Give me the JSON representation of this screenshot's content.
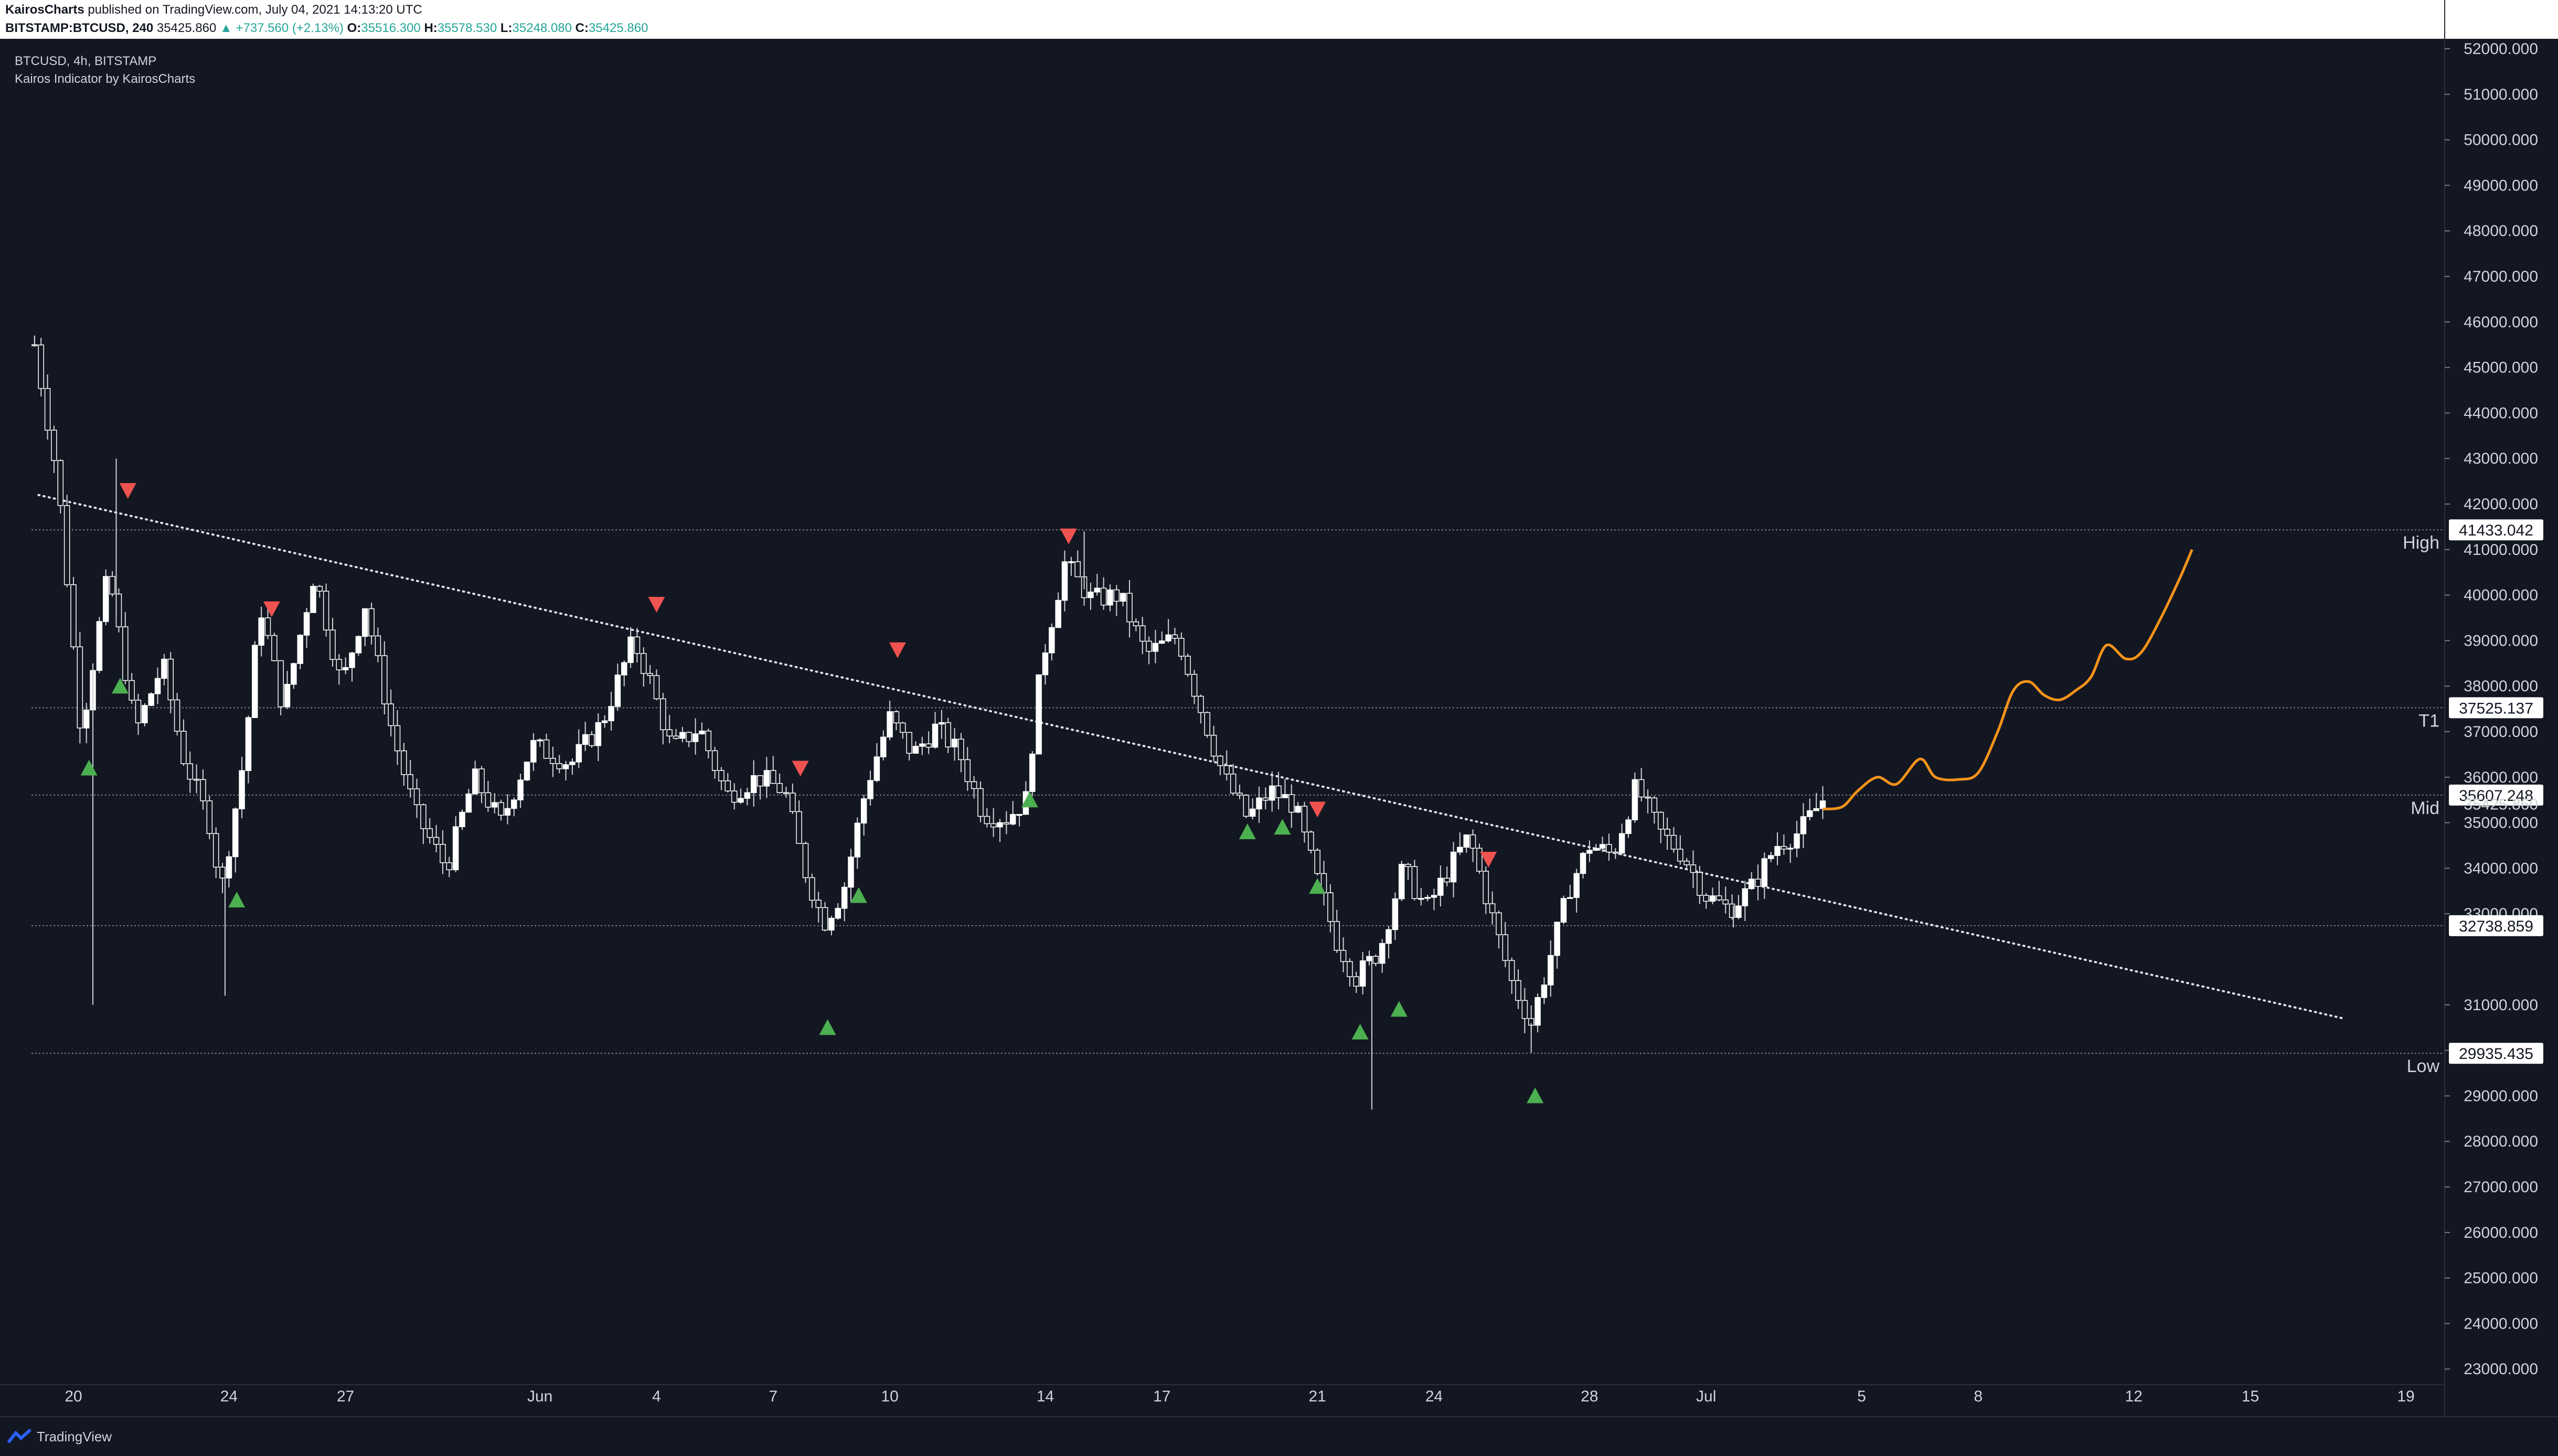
{
  "header": {
    "publisher": "KairosCharts",
    "published_text": "published on TradingView.com, July 04, 2021 14:13:20 UTC",
    "symbol": "BITSTAMP:BTCUSD, 240",
    "last": "35425.860",
    "change": "▲ +737.560 (+2.13%)",
    "o_label": "O:",
    "o": "35516.300",
    "h_label": "H:",
    "h": "35578.530",
    "l_label": "L:",
    "l": "35248.080",
    "c_label": "C:",
    "c": "35425.860"
  },
  "legend": {
    "symbol_line": "BTCUSD, 4h, BITSTAMP",
    "indicator_line": "Kairos Indicator by KairosCharts"
  },
  "footer": {
    "brand": "TradingView"
  },
  "colors": {
    "background": "#131722",
    "candle": "#ffffff",
    "buy_marker": "#4caf50",
    "sell_marker": "#ef5350",
    "projection": "#f7931a",
    "level_line": "#9598a1"
  },
  "chart_data": {
    "type": "candlestick",
    "title": "",
    "ylim": [
      22500,
      52300
    ],
    "y_ticks": [
      "52000.000",
      "51000.000",
      "50000.000",
      "49000.000",
      "48000.000",
      "47000.000",
      "46000.000",
      "45000.000",
      "44000.000",
      "43000.000",
      "42000.000",
      "41000.000",
      "40000.000",
      "39000.000",
      "38000.000",
      "37000.000",
      "36000.000",
      "35000.000",
      "34000.000",
      "33000.000",
      "31000.000",
      "30000.000",
      "29000.000",
      "28000.000",
      "27000.000",
      "26000.000",
      "25000.000",
      "24000.000",
      "23000.000"
    ],
    "x_ticks": [
      {
        "label": "20",
        "day": 20
      },
      {
        "label": "24",
        "day": 24
      },
      {
        "label": "27",
        "day": 27
      },
      {
        "label": "Jun",
        "day": 32
      },
      {
        "label": "4",
        "day": 35
      },
      {
        "label": "7",
        "day": 38
      },
      {
        "label": "10",
        "day": 41
      },
      {
        "label": "14",
        "day": 45
      },
      {
        "label": "17",
        "day": 48
      },
      {
        "label": "21",
        "day": 52
      },
      {
        "label": "24",
        "day": 55
      },
      {
        "label": "28",
        "day": 59
      },
      {
        "label": "Jul",
        "day": 62
      },
      {
        "label": "5",
        "day": 66
      },
      {
        "label": "8",
        "day": 69
      },
      {
        "label": "12",
        "day": 73
      },
      {
        "label": "15",
        "day": 76
      },
      {
        "label": "19",
        "day": 80
      }
    ],
    "levels": [
      {
        "name": "High",
        "value": 41433.042,
        "label": "41433.042"
      },
      {
        "name": "T1",
        "value": 37525.137,
        "label": "37525.137"
      },
      {
        "name": "Mid",
        "value": 35607.248,
        "label": "35607.248"
      },
      {
        "name": "",
        "value": 32738.859,
        "label": "32738.859"
      },
      {
        "name": "Low",
        "value": 29935.435,
        "label": "29935.435"
      }
    ],
    "last_price": {
      "value": 35425.86,
      "label": "35425.860"
    },
    "trendline": [
      {
        "day": 19.1,
        "price": 42200
      },
      {
        "day": 78.4,
        "price": 30700
      }
    ],
    "anchors": [
      {
        "day": 19.0,
        "price": 45500
      },
      {
        "day": 19.6,
        "price": 42500
      },
      {
        "day": 20.2,
        "price": 37000
      },
      {
        "day": 20.9,
        "price": 40500
      },
      {
        "day": 21.6,
        "price": 37000
      },
      {
        "day": 22.3,
        "price": 38500
      },
      {
        "day": 22.8,
        "price": 36500
      },
      {
        "day": 23.5,
        "price": 35000
      },
      {
        "day": 23.8,
        "price": 33500
      },
      {
        "day": 24.4,
        "price": 36500
      },
      {
        "day": 24.8,
        "price": 39800
      },
      {
        "day": 25.4,
        "price": 37500
      },
      {
        "day": 26.2,
        "price": 40500
      },
      {
        "day": 26.9,
        "price": 38000
      },
      {
        "day": 27.5,
        "price": 39800
      },
      {
        "day": 28.2,
        "price": 37000
      },
      {
        "day": 28.8,
        "price": 35200
      },
      {
        "day": 29.6,
        "price": 34000
      },
      {
        "day": 30.3,
        "price": 36000
      },
      {
        "day": 31.0,
        "price": 35000
      },
      {
        "day": 31.8,
        "price": 36700
      },
      {
        "day": 32.8,
        "price": 36300
      },
      {
        "day": 33.6,
        "price": 37200
      },
      {
        "day": 34.4,
        "price": 39000
      },
      {
        "day": 34.8,
        "price": 38200
      },
      {
        "day": 35.4,
        "price": 36600
      },
      {
        "day": 36.1,
        "price": 37100
      },
      {
        "day": 36.8,
        "price": 35600
      },
      {
        "day": 37.6,
        "price": 36000
      },
      {
        "day": 38.3,
        "price": 35700
      },
      {
        "day": 38.8,
        "price": 34000
      },
      {
        "day": 39.3,
        "price": 32800
      },
      {
        "day": 39.8,
        "price": 33500
      },
      {
        "day": 40.4,
        "price": 35800
      },
      {
        "day": 41.0,
        "price": 37300
      },
      {
        "day": 41.6,
        "price": 36500
      },
      {
        "day": 42.2,
        "price": 37100
      },
      {
        "day": 42.8,
        "price": 36500
      },
      {
        "day": 43.4,
        "price": 35200
      },
      {
        "day": 44.0,
        "price": 35100
      },
      {
        "day": 44.5,
        "price": 35500
      },
      {
        "day": 44.9,
        "price": 38500
      },
      {
        "day": 45.5,
        "price": 40700
      },
      {
        "day": 46.2,
        "price": 39900
      },
      {
        "day": 46.9,
        "price": 40000
      },
      {
        "day": 47.6,
        "price": 38700
      },
      {
        "day": 48.4,
        "price": 39100
      },
      {
        "day": 49.0,
        "price": 37500
      },
      {
        "day": 49.6,
        "price": 36000
      },
      {
        "day": 50.2,
        "price": 35100
      },
      {
        "day": 50.8,
        "price": 35700
      },
      {
        "day": 51.4,
        "price": 35400
      },
      {
        "day": 51.9,
        "price": 34000
      },
      {
        "day": 52.5,
        "price": 32400
      },
      {
        "day": 53.0,
        "price": 31600
      },
      {
        "day": 53.6,
        "price": 32200
      },
      {
        "day": 54.2,
        "price": 34000
      },
      {
        "day": 54.8,
        "price": 33100
      },
      {
        "day": 55.4,
        "price": 34000
      },
      {
        "day": 55.9,
        "price": 34700
      },
      {
        "day": 56.4,
        "price": 33200
      },
      {
        "day": 57.0,
        "price": 31500
      },
      {
        "day": 57.5,
        "price": 30600
      },
      {
        "day": 58.0,
        "price": 32100
      },
      {
        "day": 58.5,
        "price": 33600
      },
      {
        "day": 59.0,
        "price": 34500
      },
      {
        "day": 59.6,
        "price": 34300
      },
      {
        "day": 60.2,
        "price": 35800
      },
      {
        "day": 60.8,
        "price": 34800
      },
      {
        "day": 61.4,
        "price": 34300
      },
      {
        "day": 62.0,
        "price": 33400
      },
      {
        "day": 62.6,
        "price": 33100
      },
      {
        "day": 63.2,
        "price": 33600
      },
      {
        "day": 63.8,
        "price": 34500
      },
      {
        "day": 64.4,
        "price": 34800
      },
      {
        "day": 65.0,
        "price": 35500
      }
    ],
    "wicks": [
      {
        "day": 20.5,
        "low": 31000
      },
      {
        "day": 23.9,
        "low": 31200
      },
      {
        "day": 53.4,
        "low": 28700
      },
      {
        "day": 57.5,
        "low": 29950
      },
      {
        "day": 19.0,
        "high": 45700
      },
      {
        "day": 21.1,
        "high": 43000
      },
      {
        "day": 46.0,
        "high": 41400
      },
      {
        "day": 62.7,
        "low": 32700
      }
    ],
    "buy_signals": [
      {
        "day": 20.4,
        "price": 36200
      },
      {
        "day": 21.2,
        "price": 38000
      },
      {
        "day": 24.2,
        "price": 33300
      },
      {
        "day": 39.4,
        "price": 30500
      },
      {
        "day": 40.2,
        "price": 33400
      },
      {
        "day": 44.6,
        "price": 35500
      },
      {
        "day": 50.2,
        "price": 34800
      },
      {
        "day": 51.1,
        "price": 34900
      },
      {
        "day": 52.0,
        "price": 33600
      },
      {
        "day": 53.1,
        "price": 30400
      },
      {
        "day": 54.1,
        "price": 30900
      },
      {
        "day": 57.6,
        "price": 29000
      }
    ],
    "sell_signals": [
      {
        "day": 21.4,
        "price": 42300
      },
      {
        "day": 25.1,
        "price": 39700
      },
      {
        "day": 35.0,
        "price": 39800
      },
      {
        "day": 38.7,
        "price": 36200
      },
      {
        "day": 41.2,
        "price": 38800
      },
      {
        "day": 45.6,
        "price": 41300
      },
      {
        "day": 52.0,
        "price": 35300
      },
      {
        "day": 56.4,
        "price": 34200
      }
    ],
    "projection": [
      {
        "day": 65.0,
        "price": 35300
      },
      {
        "day": 65.5,
        "price": 35350
      },
      {
        "day": 65.9,
        "price": 35700
      },
      {
        "day": 66.4,
        "price": 36000
      },
      {
        "day": 66.9,
        "price": 35850
      },
      {
        "day": 67.5,
        "price": 36400
      },
      {
        "day": 67.9,
        "price": 36000
      },
      {
        "day": 68.5,
        "price": 35950
      },
      {
        "day": 69.0,
        "price": 36100
      },
      {
        "day": 69.5,
        "price": 37000
      },
      {
        "day": 69.9,
        "price": 37900
      },
      {
        "day": 70.3,
        "price": 38100
      },
      {
        "day": 70.7,
        "price": 37800
      },
      {
        "day": 71.1,
        "price": 37700
      },
      {
        "day": 71.5,
        "price": 37900
      },
      {
        "day": 71.9,
        "price": 38200
      },
      {
        "day": 72.3,
        "price": 38900
      },
      {
        "day": 72.8,
        "price": 38600
      },
      {
        "day": 73.2,
        "price": 38750
      },
      {
        "day": 73.7,
        "price": 39500
      },
      {
        "day": 74.2,
        "price": 40400
      },
      {
        "day": 74.5,
        "price": 41000
      }
    ]
  }
}
